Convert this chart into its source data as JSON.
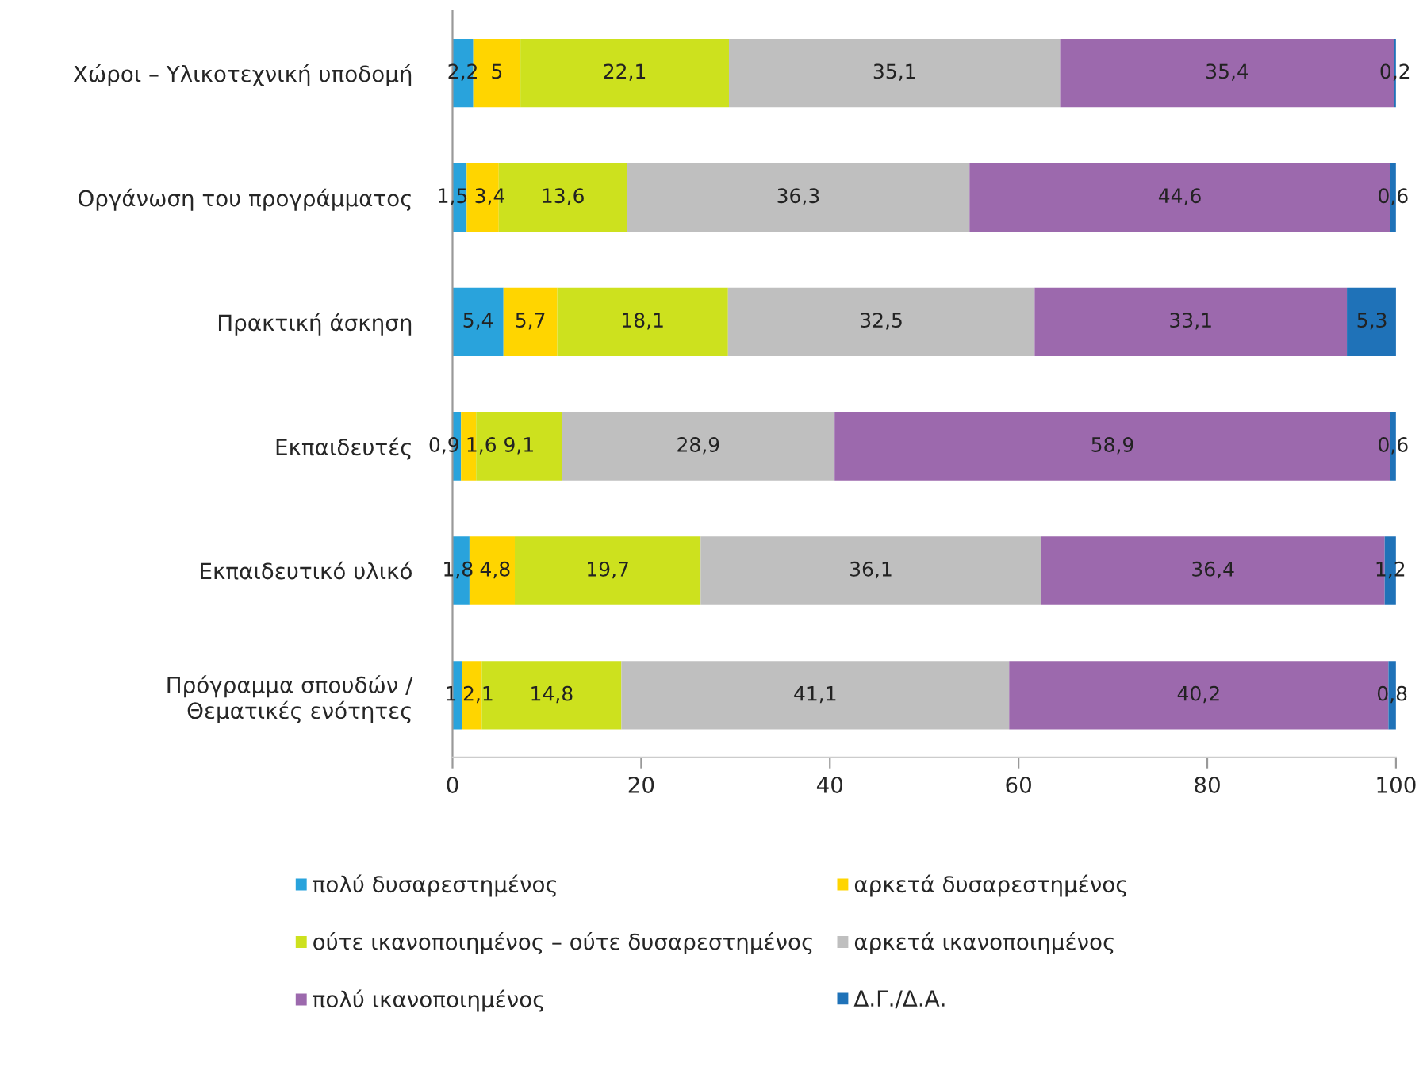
{
  "chart_data": {
    "type": "bar",
    "orientation": "horizontal",
    "stacked": true,
    "categories": [
      "Χώροι – Υλικοτεχνική υποδομή",
      "Οργάνωση του προγράμματος",
      "Πρακτική άσκηση",
      "Εκπαιδευτές",
      "Εκπαιδευτικό υλικό",
      "Πρόγραμμα σπουδών /\nΘεματικές ενότητες"
    ],
    "series": [
      {
        "name": "πολύ δυσαρεστημένος",
        "color": "#29a3dc",
        "values": [
          2.2,
          1.5,
          5.4,
          0.9,
          1.8,
          1
        ],
        "value_labels": [
          "2,2",
          "1,5",
          "5,4",
          "0,9",
          "1,8",
          "1"
        ]
      },
      {
        "name": "αρκετά δυσαρεστημένος",
        "color": "#ffd500",
        "values": [
          5,
          3.4,
          5.7,
          1.6,
          4.8,
          2.1
        ],
        "value_labels": [
          "5",
          "3,4",
          "5,7",
          "1,6",
          "4,8",
          "2,1"
        ]
      },
      {
        "name": "ούτε ικανοποιημένος – ούτε δυσαρεστημένος",
        "color": "#cde11e",
        "values": [
          22.1,
          13.6,
          18.1,
          9.1,
          19.7,
          14.8
        ],
        "value_labels": [
          "22,1",
          "13,6",
          "18,1",
          "9,1",
          "19,7",
          "14,8"
        ]
      },
      {
        "name": "αρκετά ικανοποιημένος",
        "color": "#bfbfbf",
        "values": [
          35.1,
          36.3,
          32.5,
          28.9,
          36.1,
          41.1
        ],
        "value_labels": [
          "35,1",
          "36,3",
          "32,5",
          "28,9",
          "36,1",
          "41,1"
        ]
      },
      {
        "name": "πολύ ικανοποιημένος",
        "color": "#9c69ad",
        "values": [
          35.4,
          44.6,
          33.1,
          58.9,
          36.4,
          40.2
        ],
        "value_labels": [
          "35,4",
          "44,6",
          "33,1",
          "58,9",
          "36,4",
          "40,2"
        ]
      },
      {
        "name": "Δ.Γ./Δ.Α.",
        "color": "#1f72b8",
        "values": [
          0.2,
          0.6,
          5.3,
          0.6,
          1.2,
          0.8
        ],
        "value_labels": [
          "0,2",
          "0,6",
          "5,3",
          "0,6",
          "1,2",
          "0,8"
        ]
      }
    ],
    "xlim": [
      0,
      100
    ],
    "xticks": [
      0,
      20,
      40,
      60,
      80,
      100
    ],
    "grid": false,
    "legend": "bottom"
  }
}
